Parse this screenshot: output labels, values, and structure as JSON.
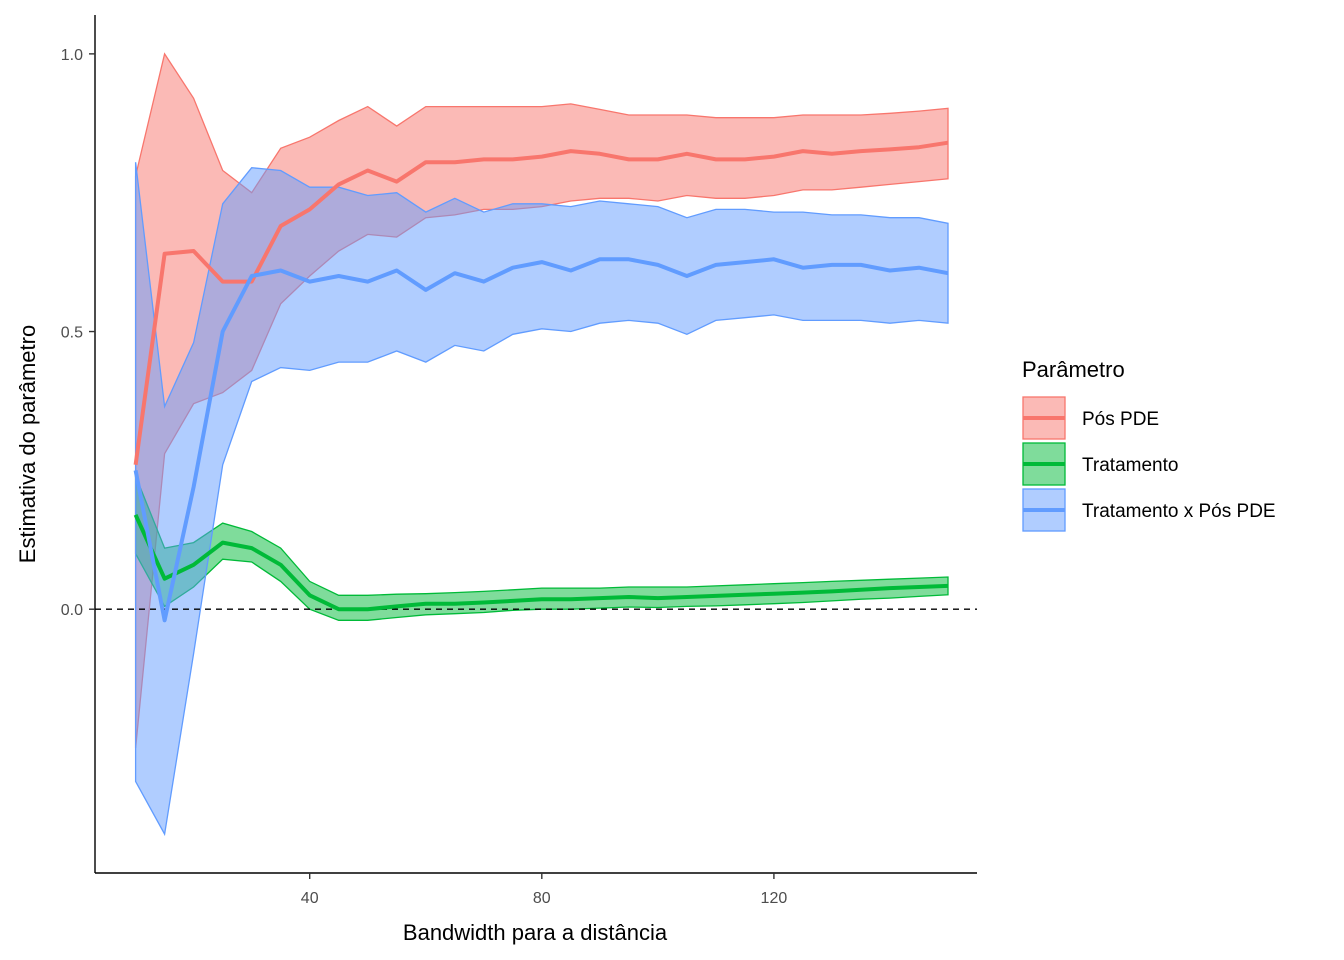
{
  "chart_data": {
    "type": "area",
    "title": "",
    "xlabel": "Bandwidth para a distância",
    "ylabel": "Estimativa do parâmetro",
    "xlim": [
      3,
      155
    ],
    "ylim": [
      -0.475,
      1.07
    ],
    "x_ticks": [
      40,
      80,
      120
    ],
    "x_tick_labels": [
      "40",
      "80",
      "120"
    ],
    "y_ticks": [
      0.0,
      0.5,
      1.0
    ],
    "y_tick_labels": [
      "0.0",
      "0.5",
      "1.0"
    ],
    "reference_line": {
      "y": 0,
      "style": "dashed"
    },
    "legend": {
      "title": "Parâmetro",
      "position": "right"
    },
    "x": [
      10,
      15,
      20,
      25,
      30,
      35,
      40,
      45,
      50,
      55,
      60,
      65,
      70,
      75,
      80,
      85,
      90,
      95,
      100,
      105,
      110,
      115,
      120,
      125,
      130,
      135,
      140,
      145,
      150
    ],
    "series": [
      {
        "name": "Pós PDE",
        "color": "#F8766D",
        "values": [
          0.26,
          0.64,
          0.645,
          0.59,
          0.59,
          0.69,
          0.72,
          0.765,
          0.79,
          0.77,
          0.805,
          0.805,
          0.81,
          0.81,
          0.815,
          0.825,
          0.82,
          0.81,
          0.81,
          0.82,
          0.81,
          0.81,
          0.815,
          0.825,
          0.82,
          0.825,
          0.828,
          0.832,
          0.84
        ],
        "upper": [
          0.78,
          1.0,
          0.92,
          0.79,
          0.75,
          0.83,
          0.85,
          0.88,
          0.905,
          0.87,
          0.905,
          0.905,
          0.905,
          0.905,
          0.905,
          0.91,
          0.9,
          0.89,
          0.89,
          0.89,
          0.885,
          0.885,
          0.885,
          0.89,
          0.89,
          0.89,
          0.893,
          0.897,
          0.902
        ],
        "lower": [
          -0.25,
          0.28,
          0.37,
          0.39,
          0.43,
          0.55,
          0.6,
          0.645,
          0.675,
          0.67,
          0.705,
          0.71,
          0.72,
          0.72,
          0.725,
          0.735,
          0.74,
          0.74,
          0.735,
          0.745,
          0.74,
          0.74,
          0.745,
          0.755,
          0.755,
          0.76,
          0.765,
          0.77,
          0.775
        ]
      },
      {
        "name": "Tratamento",
        "color": "#00BA38",
        "values": [
          0.17,
          0.055,
          0.08,
          0.12,
          0.11,
          0.08,
          0.025,
          0.0,
          0.0,
          0.005,
          0.01,
          0.01,
          0.012,
          0.015,
          0.018,
          0.018,
          0.02,
          0.022,
          0.02,
          0.022,
          0.024,
          0.026,
          0.028,
          0.03,
          0.032,
          0.035,
          0.038,
          0.04,
          0.042
        ],
        "upper": [
          0.24,
          0.11,
          0.12,
          0.155,
          0.14,
          0.11,
          0.05,
          0.025,
          0.025,
          0.027,
          0.028,
          0.03,
          0.032,
          0.035,
          0.038,
          0.038,
          0.038,
          0.04,
          0.04,
          0.04,
          0.042,
          0.044,
          0.046,
          0.048,
          0.05,
          0.052,
          0.054,
          0.056,
          0.058
        ],
        "lower": [
          0.1,
          0.005,
          0.04,
          0.09,
          0.085,
          0.05,
          0.0,
          -0.02,
          -0.02,
          -0.015,
          -0.01,
          -0.008,
          -0.006,
          -0.002,
          0.0,
          0.0,
          0.002,
          0.004,
          0.003,
          0.005,
          0.006,
          0.008,
          0.01,
          0.012,
          0.015,
          0.018,
          0.02,
          0.023,
          0.026
        ]
      },
      {
        "name": "Tratamento x Pós PDE",
        "color": "#619CFF",
        "values": [
          0.25,
          -0.02,
          0.22,
          0.5,
          0.6,
          0.61,
          0.59,
          0.6,
          0.59,
          0.61,
          0.575,
          0.605,
          0.59,
          0.615,
          0.625,
          0.61,
          0.63,
          0.63,
          0.62,
          0.6,
          0.62,
          0.625,
          0.63,
          0.615,
          0.62,
          0.62,
          0.61,
          0.615,
          0.605
        ],
        "upper": [
          0.805,
          0.365,
          0.48,
          0.73,
          0.795,
          0.79,
          0.76,
          0.76,
          0.745,
          0.75,
          0.715,
          0.74,
          0.715,
          0.73,
          0.73,
          0.725,
          0.735,
          0.73,
          0.725,
          0.705,
          0.72,
          0.72,
          0.715,
          0.715,
          0.71,
          0.71,
          0.705,
          0.705,
          0.695
        ],
        "lower": [
          -0.31,
          -0.405,
          -0.08,
          0.26,
          0.41,
          0.435,
          0.43,
          0.445,
          0.445,
          0.465,
          0.445,
          0.475,
          0.465,
          0.495,
          0.505,
          0.5,
          0.515,
          0.52,
          0.515,
          0.495,
          0.52,
          0.525,
          0.53,
          0.52,
          0.52,
          0.52,
          0.515,
          0.52,
          0.515
        ]
      }
    ]
  }
}
